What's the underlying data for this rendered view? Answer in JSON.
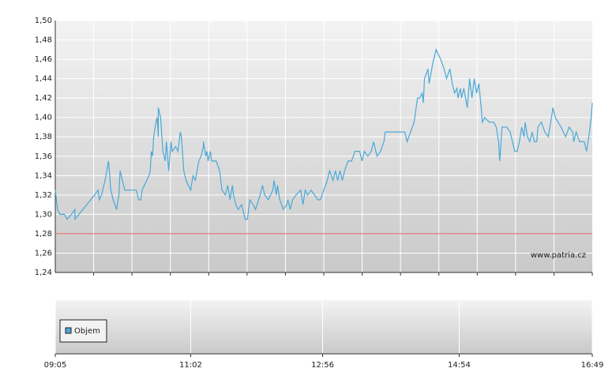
{
  "chart_data": {
    "type": "line",
    "x": [
      "09:05",
      "09:07",
      "09:09",
      "09:13",
      "09:15",
      "09:19",
      "09:22",
      "09:22",
      "09:39",
      "09:42",
      "09:43",
      "09:45",
      "09:48",
      "09:51",
      "09:53",
      "09:55",
      "09:58",
      "10:00",
      "10:01",
      "10:03",
      "10:05",
      "10:15",
      "10:17",
      "10:19",
      "10:20",
      "10:26",
      "10:27",
      "10:28",
      "10:29",
      "10:30",
      "10:32",
      "10:33",
      "10:34",
      "10:34",
      "10:36",
      "10:38",
      "10:40",
      "10:41",
      "10:43",
      "10:45",
      "10:46",
      "10:49",
      "10:51",
      "10:53",
      "10:54",
      "10:56",
      "10:58",
      "11:00",
      "11:02",
      "11:04",
      "11:06",
      "11:09",
      "11:11",
      "11:13",
      "11:13",
      "11:15",
      "11:16",
      "11:17",
      "11:19",
      "11:20",
      "11:24",
      "11:27",
      "11:29",
      "11:32",
      "11:34",
      "11:36",
      "11:38",
      "11:39",
      "11:41",
      "11:43",
      "11:46",
      "11:49",
      "11:51",
      "11:53",
      "11:56",
      "11:58",
      "12:02",
      "12:04",
      "12:06",
      "12:09",
      "12:13",
      "12:14",
      "12:16",
      "12:17",
      "12:19",
      "12:22",
      "12:25",
      "12:26",
      "12:28",
      "12:30",
      "12:33",
      "12:37",
      "12:39",
      "12:41",
      "12:43",
      "12:46",
      "12:49",
      "12:52",
      "12:54",
      "12:57",
      "13:00",
      "13:02",
      "13:05",
      "13:07",
      "13:09",
      "13:11",
      "13:13",
      "13:15",
      "13:18",
      "13:21",
      "13:24",
      "13:28",
      "13:30",
      "13:32",
      "13:35",
      "13:38",
      "13:40",
      "13:43",
      "13:46",
      "13:49",
      "13:50",
      "14:07",
      "14:09",
      "14:12",
      "14:15",
      "14:18",
      "14:20",
      "14:22",
      "14:23",
      "14:24",
      "14:27",
      "14:28",
      "14:31",
      "14:34",
      "14:38",
      "14:41",
      "14:43",
      "14:46",
      "14:48",
      "14:50",
      "14:52",
      "14:53",
      "14:55",
      "14:56",
      "14:58",
      "15:01",
      "15:03",
      "15:05",
      "15:07",
      "15:09",
      "15:11",
      "15:13",
      "15:14",
      "15:16",
      "15:20",
      "15:24",
      "15:26",
      "15:28",
      "15:29",
      "15:31",
      "15:35",
      "15:38",
      "15:41",
      "15:42",
      "15:44",
      "15:46",
      "15:48",
      "15:50",
      "15:51",
      "15:53",
      "15:55",
      "15:57",
      "15:59",
      "16:01",
      "16:02",
      "16:05",
      "16:08",
      "16:11",
      "16:15",
      "16:17",
      "16:22",
      "16:26",
      "16:29",
      "16:32",
      "16:33",
      "16:35",
      "16:38",
      "16:42",
      "16:44",
      "16:46",
      "16:48",
      "16:49"
    ],
    "series": [
      {
        "color": "#4aa8d8",
        "values": [
          1.325,
          1.305,
          1.3,
          1.3,
          1.295,
          1.3,
          1.305,
          1.295,
          1.32,
          1.325,
          1.315,
          1.32,
          1.335,
          1.355,
          1.325,
          1.315,
          1.305,
          1.32,
          1.345,
          1.335,
          1.325,
          1.325,
          1.315,
          1.315,
          1.325,
          1.34,
          1.345,
          1.365,
          1.36,
          1.38,
          1.395,
          1.4,
          1.38,
          1.41,
          1.4,
          1.365,
          1.355,
          1.375,
          1.345,
          1.375,
          1.365,
          1.37,
          1.365,
          1.385,
          1.38,
          1.345,
          1.335,
          1.33,
          1.325,
          1.34,
          1.335,
          1.355,
          1.36,
          1.37,
          1.375,
          1.36,
          1.365,
          1.355,
          1.365,
          1.355,
          1.355,
          1.345,
          1.325,
          1.32,
          1.33,
          1.315,
          1.33,
          1.32,
          1.31,
          1.305,
          1.31,
          1.295,
          1.295,
          1.315,
          1.31,
          1.305,
          1.32,
          1.33,
          1.32,
          1.315,
          1.325,
          1.335,
          1.32,
          1.33,
          1.315,
          1.305,
          1.31,
          1.315,
          1.305,
          1.315,
          1.32,
          1.325,
          1.31,
          1.325,
          1.32,
          1.325,
          1.32,
          1.315,
          1.315,
          1.325,
          1.335,
          1.345,
          1.335,
          1.345,
          1.335,
          1.345,
          1.335,
          1.345,
          1.355,
          1.355,
          1.365,
          1.365,
          1.355,
          1.365,
          1.36,
          1.365,
          1.375,
          1.36,
          1.365,
          1.375,
          1.385,
          1.385,
          1.375,
          1.385,
          1.395,
          1.42,
          1.42,
          1.425,
          1.415,
          1.44,
          1.45,
          1.435,
          1.455,
          1.47,
          1.46,
          1.45,
          1.44,
          1.45,
          1.435,
          1.425,
          1.43,
          1.42,
          1.43,
          1.42,
          1.43,
          1.41,
          1.44,
          1.42,
          1.44,
          1.425,
          1.435,
          1.41,
          1.395,
          1.4,
          1.395,
          1.395,
          1.39,
          1.375,
          1.355,
          1.39,
          1.39,
          1.385,
          1.37,
          1.365,
          1.365,
          1.375,
          1.39,
          1.38,
          1.395,
          1.38,
          1.375,
          1.385,
          1.375,
          1.375,
          1.39,
          1.395,
          1.385,
          1.38,
          1.41,
          1.4,
          1.39,
          1.38,
          1.39,
          1.385,
          1.375,
          1.385,
          1.375,
          1.375,
          1.365,
          1.38,
          1.4,
          1.415
        ]
      }
    ],
    "xlim": [
      "09:05",
      "16:49"
    ],
    "xticks": [
      "09:05",
      "11:02",
      "12:56",
      "14:54",
      "16:49"
    ],
    "ylim": [
      1.24,
      1.5
    ],
    "yticks": [
      {
        "value": 1.24,
        "label": "1,24"
      },
      {
        "value": 1.26,
        "label": "1,26"
      },
      {
        "value": 1.28,
        "label": "1,28"
      },
      {
        "value": 1.3,
        "label": "1,30"
      },
      {
        "value": 1.32,
        "label": "1,32"
      },
      {
        "value": 1.34,
        "label": "1,34"
      },
      {
        "value": 1.36,
        "label": "1,36"
      },
      {
        "value": 1.38,
        "label": "1,38"
      },
      {
        "value": 1.4,
        "label": "1,40"
      },
      {
        "value": 1.42,
        "label": "1,42"
      },
      {
        "value": 1.44,
        "label": "1,44"
      },
      {
        "value": 1.46,
        "label": "1,46"
      },
      {
        "value": 1.48,
        "label": "1,48"
      },
      {
        "value": 1.5,
        "label": "1,50"
      }
    ],
    "grid": true,
    "reference_line": {
      "value": 1.28,
      "color": "#e06060"
    },
    "watermark": "www.patria.cz",
    "volume_legend": {
      "name": "Objem",
      "color": "#4aa8d8"
    }
  }
}
